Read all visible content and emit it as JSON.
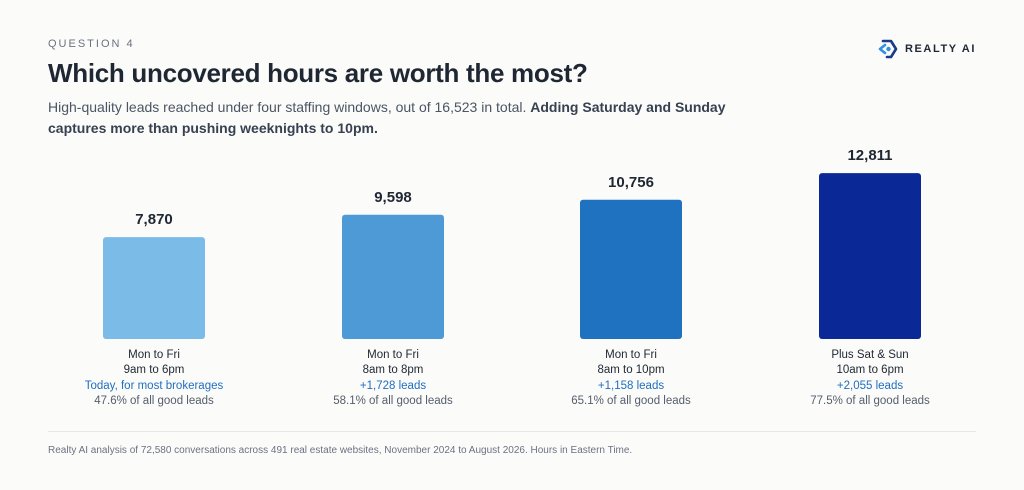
{
  "header": {
    "eyebrow": "QUESTION 4",
    "brand": "REALTY AI",
    "title": "Which uncovered hours are worth the most?",
    "subtitle_plain": "High-quality leads reached under four staffing windows, out of 16,523 in total. ",
    "subtitle_bold": "Adding Saturday and Sunday captures more than pushing weeknights to 10pm."
  },
  "chart_data": {
    "type": "bar",
    "title": "Which uncovered hours are worth the most?",
    "categories": [
      "Mon to Fri 9am to 6pm",
      "Mon to Fri 8am to 8pm",
      "Mon to Fri 8am to 10pm",
      "Plus Sat & Sun 10am to 6pm"
    ],
    "values": [
      7870,
      9598,
      10756,
      12811
    ],
    "value_labels": [
      "7,870",
      "9,598",
      "10,756",
      "12,811"
    ],
    "colors": [
      "#7bbbe8",
      "#4d9ad7",
      "#1f72c0",
      "#0a2896"
    ],
    "ylim": [
      0,
      14600
    ],
    "grid": false,
    "bars": [
      {
        "line1": "Mon to Fri",
        "line2": "9am to 6pm",
        "line3": "Today, for most brokerages",
        "line4": "47.6% of all good leads"
      },
      {
        "line1": "Mon to Fri",
        "line2": "8am to 8pm",
        "line3": "+1,728 leads",
        "line4": "58.1% of all good leads"
      },
      {
        "line1": "Mon to Fri",
        "line2": "8am to 10pm",
        "line3": "+1,158 leads",
        "line4": "65.1% of all good leads"
      },
      {
        "line1": "Plus Sat & Sun",
        "line2": "10am to 6pm",
        "line3": "+2,055 leads",
        "line4": "77.5% of all good leads"
      }
    ]
  },
  "footnote": "Realty AI analysis of 72,580 conversations across 491 real estate websites, November 2024 to August 2026. Hours in Eastern Time."
}
